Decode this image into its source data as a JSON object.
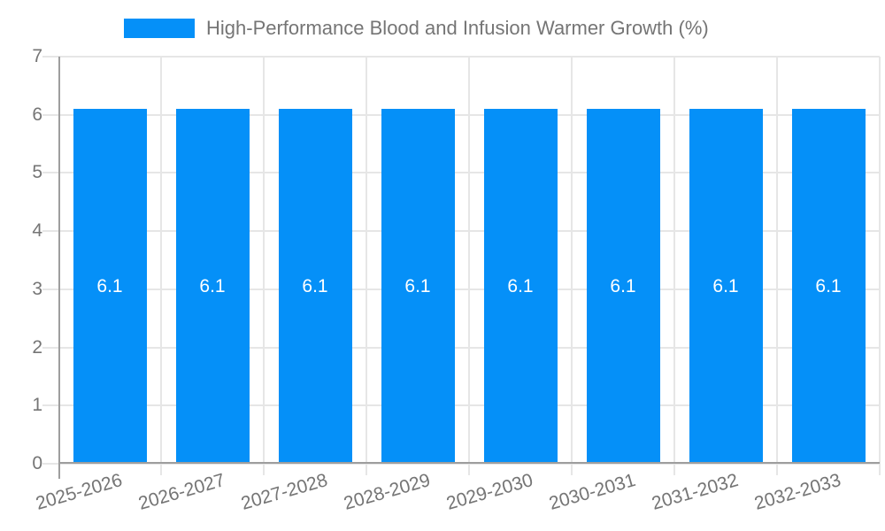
{
  "chart_data": {
    "type": "bar",
    "title": "High-Performance Blood and Infusion Warmer Growth (%)",
    "categories": [
      "2025-2026",
      "2026-2027",
      "2027-2028",
      "2028-2029",
      "2029-2030",
      "2030-2031",
      "2031-2032",
      "2032-2033"
    ],
    "values": [
      6.1,
      6.1,
      6.1,
      6.1,
      6.1,
      6.1,
      6.1,
      6.1
    ],
    "bar_labels": [
      "6.1",
      "6.1",
      "6.1",
      "6.1",
      "6.1",
      "6.1",
      "6.1",
      "6.1"
    ],
    "xlabel": "",
    "ylabel": "",
    "ylim": [
      0,
      7
    ],
    "yticks": [
      0,
      1,
      2,
      3,
      4,
      5,
      6,
      7
    ],
    "grid": true,
    "legend_position": "top",
    "colors": {
      "bar": "#0590f8",
      "bar_label": "#ffffff",
      "gridline": "#e6e6e6",
      "axis_line": "#9e9e9e",
      "text": "#757575",
      "background": "#ffffff"
    }
  }
}
